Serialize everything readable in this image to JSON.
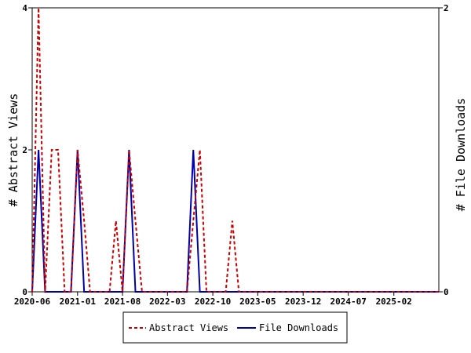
{
  "chart_data": {
    "type": "line",
    "x_axis": {
      "tick_labels": [
        "2020-06",
        "2021-01",
        "2021-08",
        "2022-03",
        "2022-10",
        "2023-05",
        "2023-12",
        "2024-07",
        "2025-02"
      ],
      "tick_dates": [
        "2020-06-01",
        "2021-01-01",
        "2021-08-01",
        "2022-03-01",
        "2022-10-01",
        "2023-05-01",
        "2023-12-01",
        "2024-07-01",
        "2025-02-01"
      ],
      "range": [
        "2020-06-01",
        "2025-09-01"
      ]
    },
    "y_left": {
      "label": "# Abstract Views",
      "ticks": [
        "0",
        "2",
        "4"
      ],
      "range": [
        0,
        4
      ]
    },
    "y_right": {
      "label": "# File Downloads",
      "ticks": [
        "0",
        "2"
      ],
      "range": [
        0,
        2
      ]
    },
    "series": [
      {
        "name": "Abstract Views",
        "axis": "left",
        "color": "#cc0000",
        "dash": true,
        "x": [
          "2020-06-01",
          "2020-07-01",
          "2020-08-01",
          "2020-09-01",
          "2020-10-01",
          "2020-11-01",
          "2020-12-01",
          "2021-01-01",
          "2021-02-01",
          "2021-03-01",
          "2021-04-01",
          "2021-05-01",
          "2021-06-01",
          "2021-07-01",
          "2021-08-01",
          "2021-09-01",
          "2021-10-01",
          "2021-11-01",
          "2021-12-01",
          "2022-01-01",
          "2022-02-01",
          "2022-03-01",
          "2022-04-01",
          "2022-05-01",
          "2022-06-01",
          "2022-07-01",
          "2022-08-01",
          "2022-09-01",
          "2022-10-01",
          "2022-11-01",
          "2022-12-01",
          "2023-01-01",
          "2023-02-01",
          "2023-03-01",
          "2023-04-01",
          "2023-05-01",
          "2025-09-01"
        ],
        "values": [
          0,
          4,
          0,
          2,
          2,
          0,
          0,
          2,
          1,
          0,
          0,
          0,
          0,
          1,
          0,
          2,
          1,
          0,
          0,
          0,
          0,
          0,
          0,
          0,
          0,
          1,
          2,
          0,
          0,
          0,
          0,
          1,
          0,
          0,
          0,
          0,
          0
        ]
      },
      {
        "name": "File Downloads",
        "axis": "right",
        "color": "#0000aa",
        "dash": false,
        "x": [
          "2020-06-01",
          "2020-07-01",
          "2020-08-01",
          "2020-09-01",
          "2020-10-01",
          "2020-11-01",
          "2020-12-01",
          "2021-01-01",
          "2021-02-01",
          "2021-03-01",
          "2021-04-01",
          "2021-05-01",
          "2021-06-01",
          "2021-07-01",
          "2021-08-01",
          "2021-09-01",
          "2021-10-01",
          "2021-11-01",
          "2021-12-01",
          "2022-01-01",
          "2022-02-01",
          "2022-03-01",
          "2022-04-01",
          "2022-05-01",
          "2022-06-01",
          "2022-07-01",
          "2022-08-01",
          "2022-09-01",
          "2025-09-01"
        ],
        "values": [
          0,
          1,
          0,
          0,
          0,
          0,
          0,
          1,
          0,
          0,
          0,
          0,
          0,
          0,
          0,
          1,
          0,
          0,
          0,
          0,
          0,
          0,
          0,
          0,
          0,
          1,
          0,
          0,
          0
        ]
      }
    ],
    "legend": {
      "position": "bottom-center"
    },
    "grid": false
  }
}
